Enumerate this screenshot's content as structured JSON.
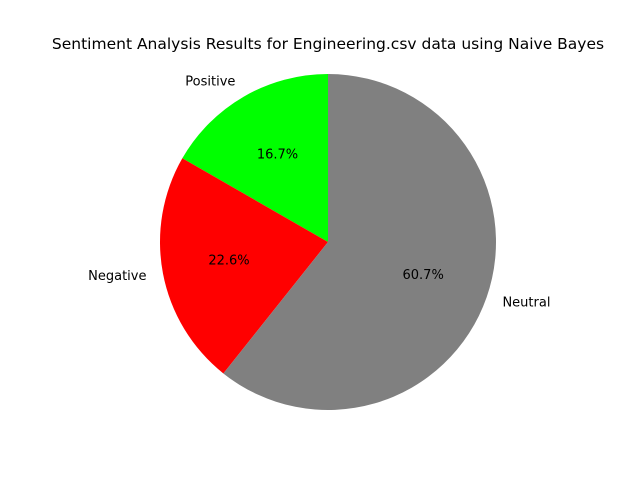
{
  "chart_data": {
    "type": "pie",
    "title": "Sentiment Analysis Results for Engineering.csv data using Naive Bayes",
    "start_angle_deg": 90,
    "direction": "counterclockwise",
    "slices": [
      {
        "label": "Positive",
        "value": 16.7,
        "pct_text": "16.7%",
        "color": "#00ff00"
      },
      {
        "label": "Negative",
        "value": 22.6,
        "pct_text": "22.6%",
        "color": "#ff0000"
      },
      {
        "label": "Neutral",
        "value": 60.7,
        "pct_text": "60.7%",
        "color": "#808080"
      }
    ]
  }
}
